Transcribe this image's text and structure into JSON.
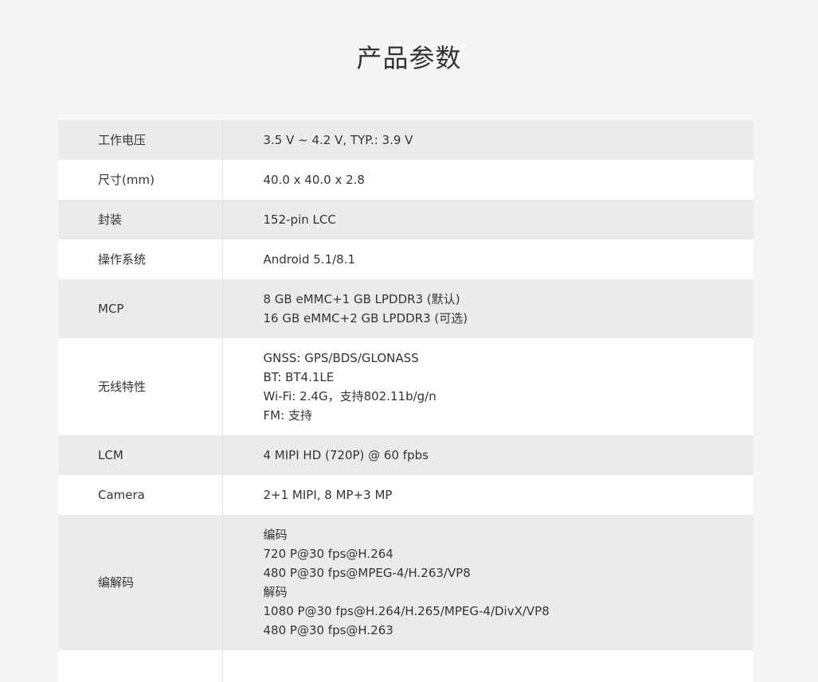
{
  "title": "产品参数",
  "specs": [
    {
      "label": "工作电压",
      "values": [
        "3.5 V ~ 4.2 V, TYP.: 3.9 V"
      ]
    },
    {
      "label": "尺寸(mm)",
      "values": [
        "40.0 x 40.0 x 2.8"
      ]
    },
    {
      "label": "封装",
      "values": [
        "152-pin LCC"
      ]
    },
    {
      "label": "操作系统",
      "values": [
        "Android 5.1/8.1"
      ]
    },
    {
      "label": "MCP",
      "values": [
        "8 GB eMMC+1 GB LPDDR3 (默认)",
        "16 GB eMMC+2 GB LPDDR3 (可选)"
      ]
    },
    {
      "label": "无线特性",
      "values": [
        "GNSS: GPS/BDS/GLONASS",
        "BT: BT4.1LE",
        "Wi-Fi: 2.4G，支持802.11b/g/n",
        "FM: 支持"
      ]
    },
    {
      "label": "LCM",
      "values": [
        "4 MIPI HD (720P) @ 60 fpbs"
      ]
    },
    {
      "label": "Camera",
      "values": [
        "2+1 MIPI, 8 MP+3 MP"
      ]
    },
    {
      "label": "编解码",
      "values": [
        "编码",
        "720 P@30 fps@H.264",
        "480 P@30 fps@MPEG-4/H.263/VP8",
        "解码",
        "1080 P@30 fps@H.264/H.265/MPEG-4/DivX/VP8",
        "480 P@30 fps@H.263"
      ]
    }
  ]
}
